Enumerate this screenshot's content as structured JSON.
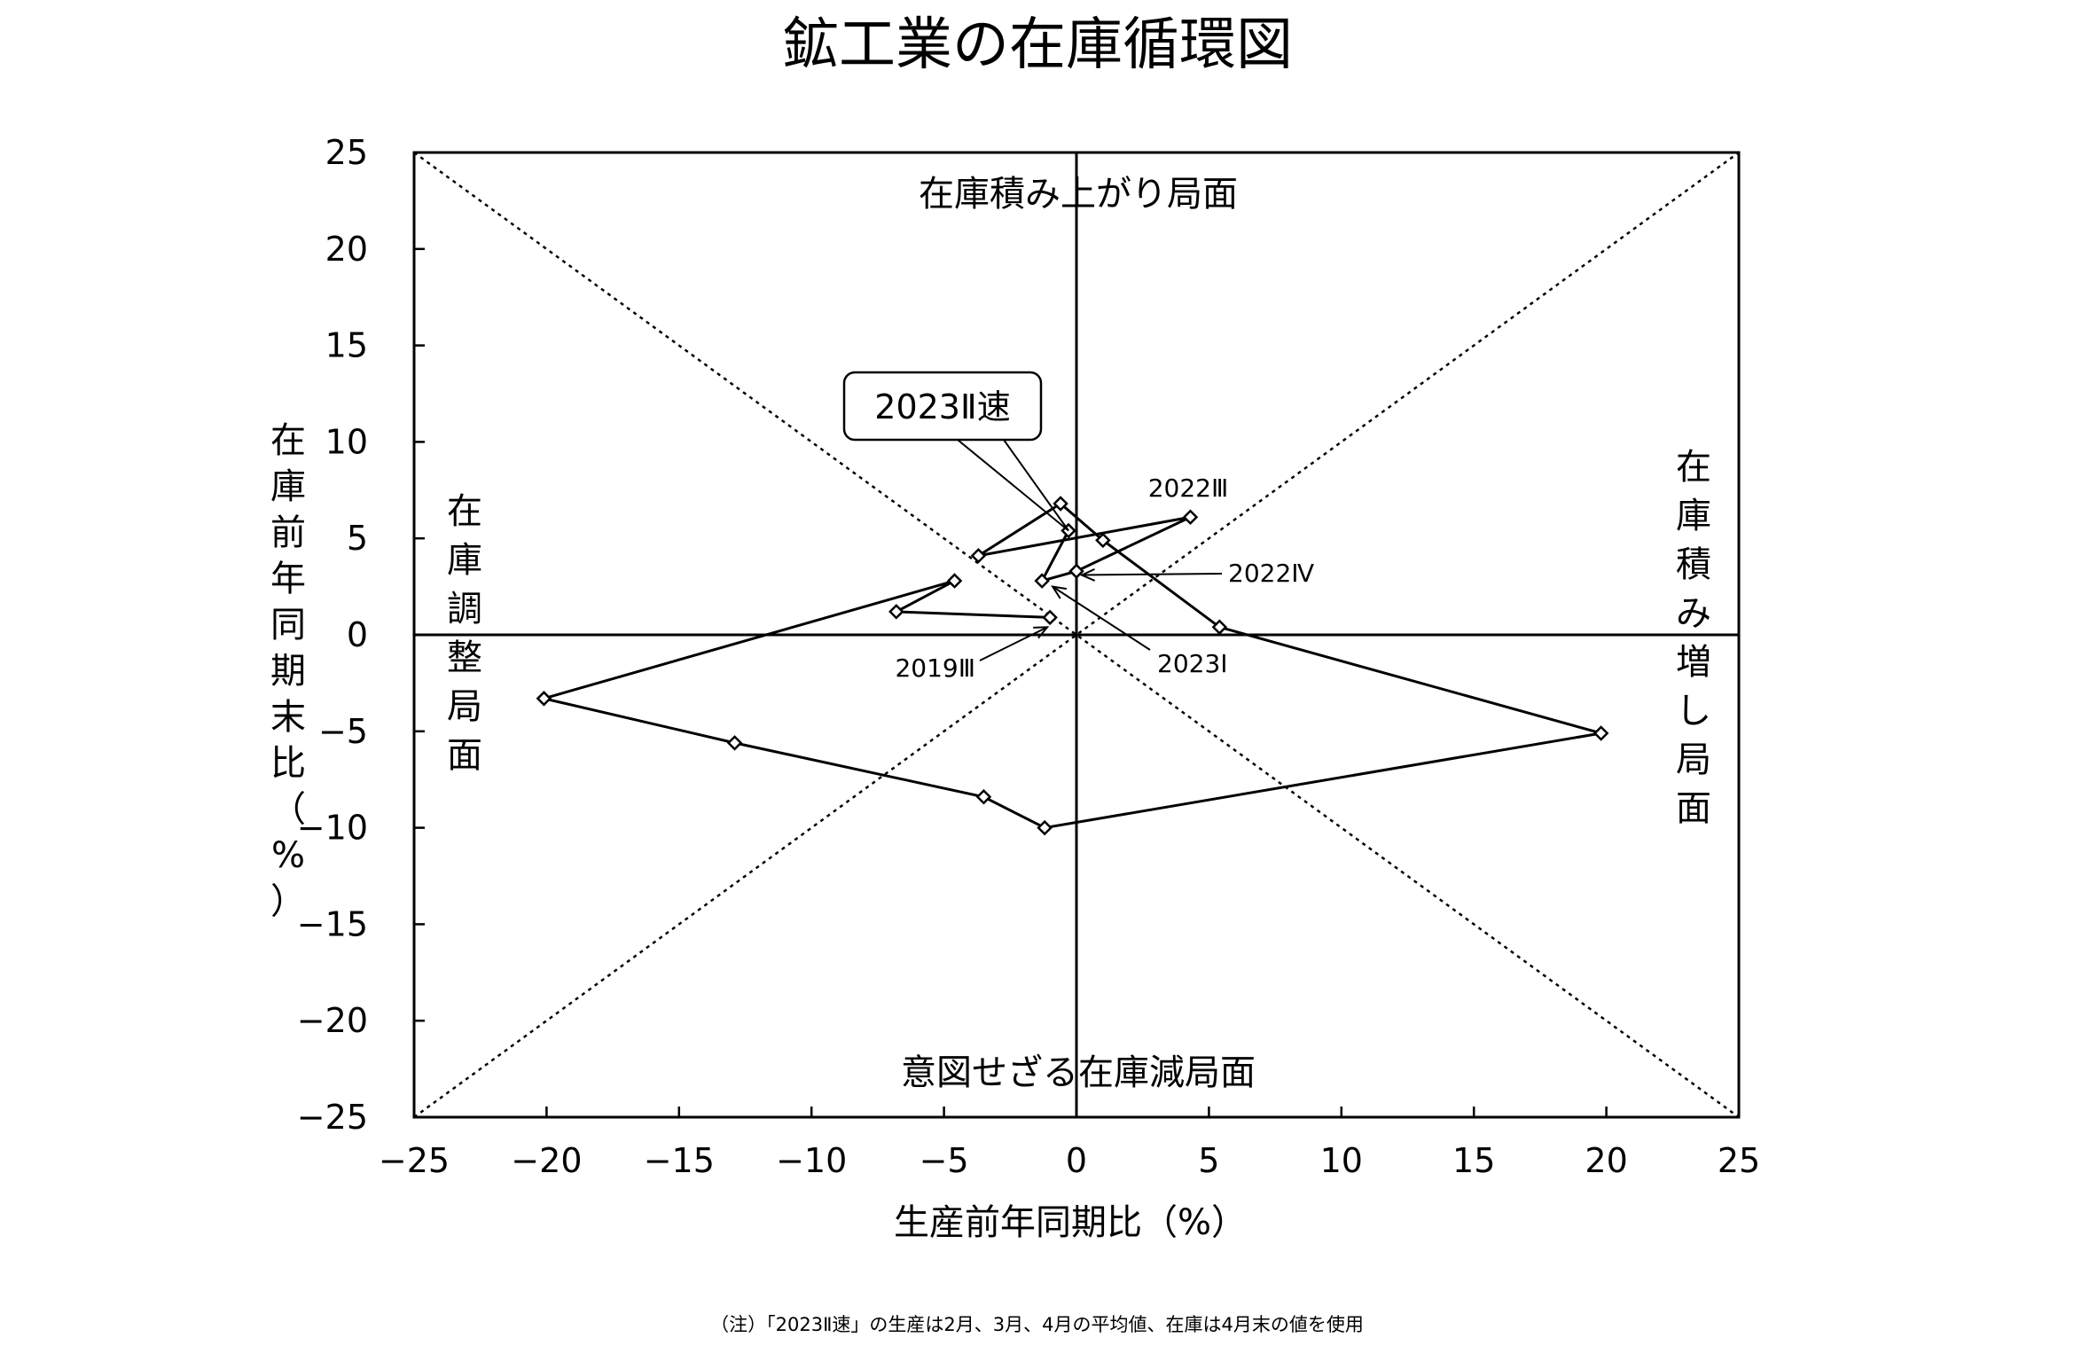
{
  "chart_data": {
    "type": "line",
    "title": "鉱工業の在庫循環図",
    "xlabel": "生産前年同期比（%）",
    "ylabel": "在庫前年同期末比（%）",
    "xlim": [
      -25,
      25
    ],
    "ylim": [
      -25,
      25
    ],
    "x_ticks": [
      "−25",
      "−20",
      "−15",
      "−10",
      "−5",
      "0",
      "5",
      "10",
      "15",
      "20",
      "25"
    ],
    "y_ticks": [
      "25",
      "20",
      "15",
      "10",
      "5",
      "0",
      "−5",
      "−10",
      "−15",
      "−20",
      "−25"
    ],
    "grid": false,
    "reference_lines": "45-degree diagonals through origin (dotted)",
    "series": [
      {
        "points": [
          {
            "x": -1.0,
            "y": 0.9
          },
          {
            "x": -6.8,
            "y": 1.2
          },
          {
            "x": -4.6,
            "y": 2.8
          },
          {
            "x": -20.1,
            "y": -3.3
          },
          {
            "x": -12.9,
            "y": -5.6
          },
          {
            "x": -3.5,
            "y": -8.4
          },
          {
            "x": -1.2,
            "y": -10.0
          },
          {
            "x": 19.8,
            "y": -5.1
          },
          {
            "x": 5.4,
            "y": 0.4
          },
          {
            "x": 1.0,
            "y": 4.9
          },
          {
            "x": -0.6,
            "y": 6.8
          },
          {
            "x": -3.7,
            "y": 4.1
          },
          {
            "x": 4.3,
            "y": 6.1
          },
          {
            "x": 0.0,
            "y": 3.3
          },
          {
            "x": -1.3,
            "y": 2.8
          },
          {
            "x": -0.3,
            "y": 5.4
          }
        ]
      }
    ],
    "quadrants": {
      "top": "在庫積み上がり局面",
      "bottom": "意図せざる在庫減局面",
      "left": "在庫調整局面",
      "right": "在庫積み増し局面"
    },
    "annotations": {
      "a2019_3": "2019Ⅲ",
      "a2022_3": "2022Ⅲ",
      "a2022_4": "2022Ⅳ",
      "a2023_1": "2023Ⅰ",
      "a2023_2": "2023Ⅱ速"
    },
    "note": "（注）「2023Ⅱ速」の生産は2月、3月、4月の平均値、在庫は4月末の値を使用"
  }
}
